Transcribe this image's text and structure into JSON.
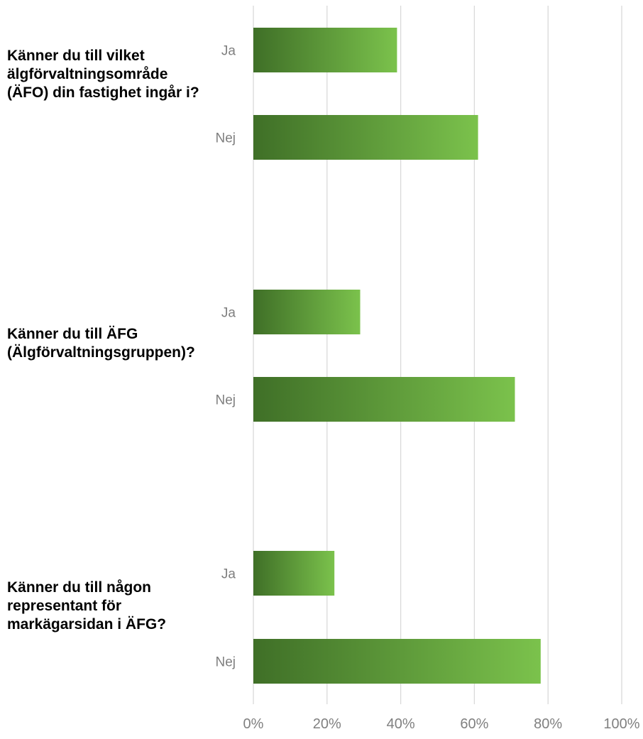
{
  "chart_data": {
    "type": "bar",
    "orientation": "horizontal",
    "groups": [
      {
        "question": "Känner du till vilket älgförvaltningsområde (ÄFO) din fastighet ingår i?",
        "bars": [
          {
            "label": "Ja",
            "value": 39
          },
          {
            "label": "Nej",
            "value": 61
          }
        ]
      },
      {
        "question": "Känner du till ÄFG (Älgförvaltningsgruppen)?",
        "bars": [
          {
            "label": "Ja",
            "value": 29
          },
          {
            "label": "Nej",
            "value": 71
          }
        ]
      },
      {
        "question": "Känner du till någon representant för markägarsidan i ÄFG?",
        "bars": [
          {
            "label": "Ja",
            "value": 22
          },
          {
            "label": "Nej",
            "value": 78
          }
        ]
      }
    ],
    "xlim": [
      0,
      100
    ],
    "xticks": [
      "0%",
      "20%",
      "40%",
      "60%",
      "80%",
      "100%"
    ],
    "grid": true,
    "legend": "none",
    "colors": {
      "bar_gradient_start": "#3f6f27",
      "bar_gradient_end": "#7bc24c",
      "gridline": "#d9d9d9",
      "tick_label": "#808080",
      "category_label": "#7f7f7f",
      "question_text": "#000000"
    }
  }
}
